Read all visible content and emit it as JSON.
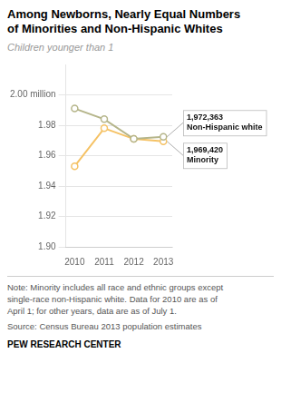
{
  "chart_data": {
    "type": "line",
    "title": "Among Newborns, Nearly Equal Numbers\nof Minorities and Non-Hispanic Whites",
    "subtitle": "Children younger than 1",
    "x": [
      2010,
      2011,
      2012,
      2013
    ],
    "series": [
      {
        "color": "#b5b58a",
        "values": [
          1.991,
          1.984,
          1.971,
          1.972363
        ],
        "marker": "circle",
        "line_style": "solid"
      },
      {
        "color": "#f5c265",
        "values": [
          1.953,
          1.978,
          1.971,
          1.96942
        ],
        "marker": "circle",
        "line_style": "solid"
      }
    ],
    "xlim": [
      2009.7,
      2013.3
    ],
    "xticks": [
      2010,
      2011,
      2012,
      2013
    ],
    "ylim": [
      1.9,
      2.02
    ],
    "yticks": [
      {
        "value": 1.9,
        "label": "1.90"
      },
      {
        "value": 1.92,
        "label": "1.92"
      },
      {
        "value": 1.94,
        "label": "1.94"
      },
      {
        "value": 1.96,
        "label": "1.96"
      },
      {
        "value": 1.98,
        "label": "1.98"
      },
      {
        "value": 2.0,
        "label": "2.00 million"
      }
    ],
    "grid": "y",
    "annotations": [
      {
        "text": "1,972,363\nNon-Hispanic white",
        "x": 2013,
        "y": 1.972363
      },
      {
        "text": "1,969,420\nMinority",
        "x": 2013,
        "y": 1.96942
      }
    ],
    "notes": [
      "Note: Minority includes all race and ethnic groups except",
      "single-race non-Hispanic white. Data for 2010 are as of",
      "April 1; for other years, data are as of July 1."
    ],
    "source": "Source: Census Bureau 2013 population estimates",
    "footer": "PEW RESEARCH CENTER"
  }
}
